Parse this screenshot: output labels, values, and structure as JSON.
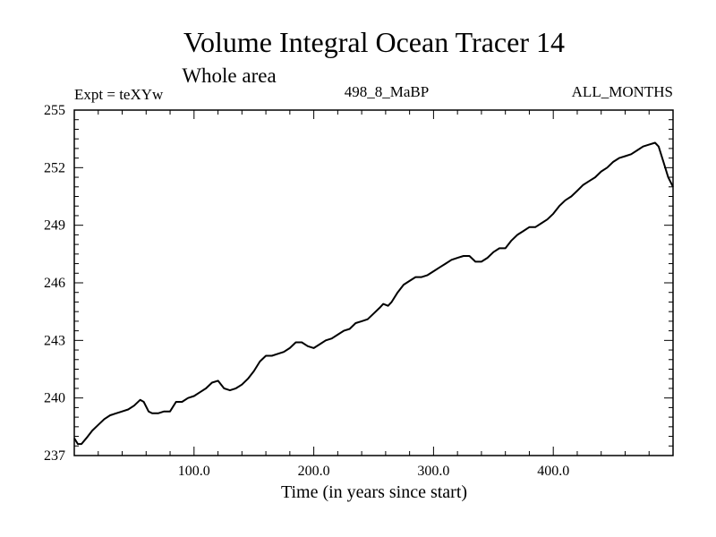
{
  "chart_data": {
    "type": "line",
    "title": "Volume Integral Ocean Tracer 14",
    "subtitle": "Whole area",
    "expt_label": "Expt = teXYw",
    "run_label": "498_8_MaBP",
    "months_label": "ALL_MONTHS",
    "xlabel": "Time (in years since start)",
    "ylabel": "",
    "xlim": [
      0,
      500
    ],
    "ylim": [
      237,
      255
    ],
    "x_ticks": [
      100,
      200,
      300,
      400
    ],
    "x_tick_labels": [
      "100.0",
      "200.0",
      "300.0",
      "400.0"
    ],
    "y_ticks": [
      237,
      240,
      243,
      246,
      249,
      252,
      255
    ],
    "y_tick_labels": [
      "237",
      "240",
      "243",
      "246",
      "249",
      "252",
      "255"
    ],
    "series": [
      {
        "name": "Volume Integral Ocean Tracer 14",
        "color": "#000000",
        "x": [
          0,
          3,
          6,
          10,
          15,
          20,
          25,
          30,
          35,
          40,
          45,
          50,
          55,
          58,
          62,
          65,
          70,
          75,
          80,
          85,
          90,
          95,
          100,
          105,
          110,
          115,
          120,
          125,
          130,
          135,
          140,
          145,
          150,
          155,
          160,
          165,
          170,
          175,
          180,
          185,
          190,
          195,
          200,
          205,
          210,
          215,
          220,
          225,
          230,
          235,
          240,
          245,
          250,
          255,
          258,
          262,
          265,
          270,
          275,
          280,
          285,
          290,
          295,
          300,
          305,
          310,
          315,
          320,
          325,
          330,
          335,
          340,
          345,
          350,
          355,
          360,
          365,
          370,
          375,
          380,
          385,
          390,
          395,
          400,
          405,
          410,
          415,
          420,
          425,
          430,
          435,
          440,
          445,
          450,
          455,
          460,
          465,
          470,
          475,
          480,
          485,
          488,
          492,
          496,
          500
        ],
        "values": [
          237.9,
          237.6,
          237.6,
          237.9,
          238.3,
          238.6,
          238.9,
          239.1,
          239.2,
          239.3,
          239.4,
          239.6,
          239.9,
          239.8,
          239.3,
          239.2,
          239.2,
          239.3,
          239.3,
          239.8,
          239.8,
          240.0,
          240.1,
          240.3,
          240.5,
          240.8,
          240.9,
          240.5,
          240.4,
          240.5,
          240.7,
          241.0,
          241.4,
          241.9,
          242.2,
          242.2,
          242.3,
          242.4,
          242.6,
          242.9,
          242.9,
          242.7,
          242.6,
          242.8,
          243.0,
          243.1,
          243.3,
          243.5,
          243.6,
          243.9,
          244.0,
          244.1,
          244.4,
          244.7,
          244.9,
          244.8,
          245.0,
          245.5,
          245.9,
          246.1,
          246.3,
          246.3,
          246.4,
          246.6,
          246.8,
          247.0,
          247.2,
          247.3,
          247.4,
          247.4,
          247.1,
          247.1,
          247.3,
          247.6,
          247.8,
          247.8,
          248.2,
          248.5,
          248.7,
          248.9,
          248.9,
          249.1,
          249.3,
          249.6,
          250.0,
          250.3,
          250.5,
          250.8,
          251.1,
          251.3,
          251.5,
          251.8,
          252.0,
          252.3,
          252.5,
          252.6,
          252.7,
          252.9,
          253.1,
          253.2,
          253.3,
          253.1,
          252.3,
          251.5,
          251.0
        ]
      }
    ]
  }
}
